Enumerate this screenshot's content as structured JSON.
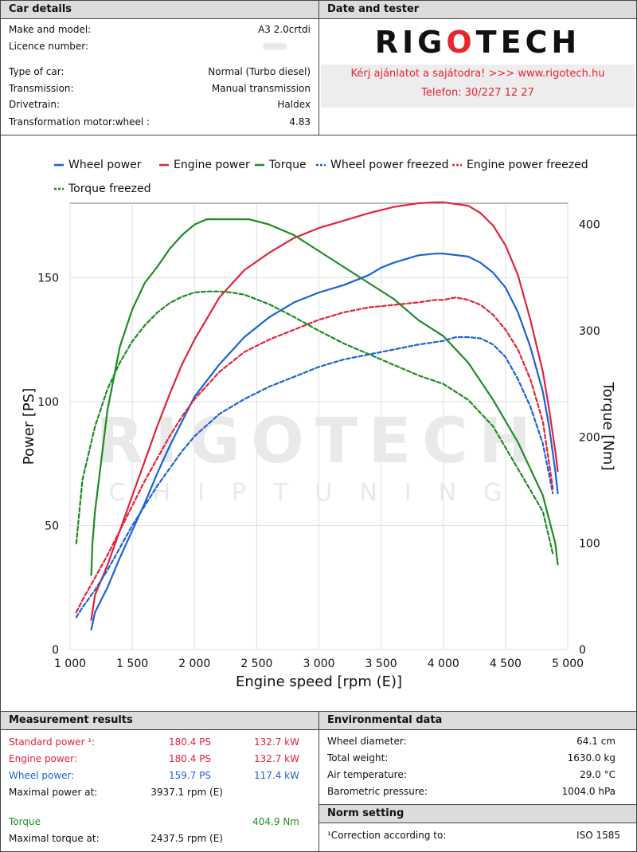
{
  "car_details": {
    "header": "Car details",
    "rows": [
      {
        "label": "Make and model:",
        "value": "A3 2.0crtdi"
      },
      {
        "label": "Licence number:",
        "value": ""
      },
      {
        "label": "Type of car:",
        "value": "Normal (Turbo diesel)"
      },
      {
        "label": "Transmission:",
        "value": "Manual transmission"
      },
      {
        "label": "Drivetrain:",
        "value": "Haldex"
      },
      {
        "label": "Transformation motor:wheel :",
        "value": "4.83"
      }
    ]
  },
  "date_tester": {
    "header": "Date and tester",
    "logo_left": "RIG",
    "logo_o": "O",
    "logo_right": "TECH",
    "promo_line1": "Kérj ajánlatot a sajátodra!  >>>  www.rigotech.hu",
    "promo_line2": "Telefon: 30/227 12 27"
  },
  "watermark": {
    "main": "RIGOTECH",
    "sub": "CHIPTUNING"
  },
  "colors": {
    "wheel": "#1a63d6",
    "engine": "#e3233b",
    "torque": "#1d8c22",
    "header_bg": "#dcdcdc"
  },
  "chart_data": {
    "type": "line",
    "xlabel": "Engine speed [rpm (E)]",
    "ylabel": "Power [PS]",
    "y2label": "Torque [Nm]",
    "xlim": [
      1000,
      5000
    ],
    "ylim": [
      0,
      180
    ],
    "y2lim": [
      0,
      420
    ],
    "xticks": [
      1000,
      1500,
      2000,
      2500,
      3000,
      3500,
      4000,
      4500,
      5000
    ],
    "xtick_labels": [
      "1 000",
      "1 500",
      "2 000",
      "2 500",
      "3 000",
      "3 500",
      "4 000",
      "4 500",
      "5 000"
    ],
    "yticks": [
      0,
      50,
      100,
      150
    ],
    "ytick_labels": [
      "0",
      "50",
      "100",
      "150"
    ],
    "y2ticks": [
      0,
      100,
      200,
      300,
      400
    ],
    "y2tick_labels": [
      "0",
      "100",
      "200",
      "300",
      "400"
    ],
    "grid": true,
    "legend_position": "top",
    "series": [
      {
        "name": "Wheel power",
        "axis": "left",
        "style": "solid",
        "color": "#1a63d6",
        "x": [
          1170,
          1200,
          1300,
          1400,
          1500,
          1600,
          1700,
          1800,
          1900,
          2000,
          2200,
          2400,
          2600,
          2800,
          3000,
          3200,
          3400,
          3500,
          3600,
          3800,
          3937,
          4000,
          4200,
          4300,
          4400,
          4500,
          4600,
          4700,
          4800,
          4850,
          4900,
          4920
        ],
        "y": [
          8,
          15,
          25,
          37,
          48,
          59,
          71,
          82,
          92,
          102,
          115,
          126,
          134,
          140,
          144,
          147,
          151,
          154,
          156,
          159,
          159.7,
          159.7,
          158.5,
          156,
          152,
          146,
          136,
          122,
          104,
          90,
          72,
          63
        ]
      },
      {
        "name": "Engine power",
        "axis": "left",
        "style": "solid",
        "color": "#e3233b",
        "x": [
          1170,
          1200,
          1300,
          1400,
          1500,
          1600,
          1700,
          1800,
          1900,
          2000,
          2200,
          2400,
          2600,
          2800,
          3000,
          3200,
          3400,
          3600,
          3800,
          3937,
          4000,
          4200,
          4300,
          4400,
          4500,
          4600,
          4700,
          4800,
          4850,
          4900,
          4920
        ],
        "y": [
          12,
          22,
          34,
          48,
          62,
          76,
          90,
          103,
          115,
          125,
          142,
          153,
          160,
          166,
          170,
          173,
          176,
          178.5,
          180,
          180.4,
          180.4,
          179,
          176,
          171,
          163,
          151,
          133,
          112,
          97,
          80,
          72
        ]
      },
      {
        "name": "Torque",
        "axis": "right",
        "style": "solid",
        "color": "#1d8c22",
        "x": [
          1170,
          1180,
          1200,
          1300,
          1400,
          1500,
          1600,
          1700,
          1800,
          1900,
          2000,
          2100,
          2200,
          2300,
          2437.5,
          2600,
          2800,
          3000,
          3200,
          3400,
          3600,
          3800,
          4000,
          4200,
          4400,
          4600,
          4800,
          4900,
          4920
        ],
        "y": [
          70,
          100,
          130,
          225,
          285,
          320,
          345,
          360,
          377,
          390,
          400,
          405,
          404.9,
          404.9,
          404.9,
          400,
          390,
          375,
          360,
          345,
          330,
          310,
          295,
          270,
          235,
          195,
          145,
          100,
          80
        ]
      },
      {
        "name": "Wheel power freezed",
        "axis": "left",
        "style": "dashed",
        "color": "#1a63d6",
        "x": [
          1050,
          1100,
          1200,
          1300,
          1400,
          1500,
          1600,
          1700,
          1800,
          1900,
          2000,
          2200,
          2400,
          2600,
          2800,
          3000,
          3200,
          3400,
          3600,
          3800,
          3937,
          4000,
          4100,
          4200,
          4300,
          4400,
          4500,
          4600,
          4700,
          4800,
          4880
        ],
        "y": [
          13,
          17,
          24,
          32,
          41,
          50,
          58,
          66,
          73,
          80,
          86,
          95,
          101,
          106,
          110,
          114,
          117,
          119,
          121,
          123,
          124,
          124.5,
          126,
          126,
          125.5,
          123,
          118,
          109,
          98,
          83,
          63
        ]
      },
      {
        "name": "Engine power freezed",
        "axis": "left",
        "style": "dashed",
        "color": "#e3233b",
        "x": [
          1050,
          1100,
          1200,
          1300,
          1400,
          1500,
          1600,
          1700,
          1800,
          1900,
          2000,
          2200,
          2400,
          2600,
          2800,
          3000,
          3200,
          3400,
          3600,
          3800,
          3937,
          4000,
          4100,
          4200,
          4300,
          4400,
          4500,
          4600,
          4700,
          4800,
          4880
        ],
        "y": [
          15,
          20,
          29,
          38,
          48,
          58,
          68,
          77,
          86,
          94,
          101,
          112,
          120,
          125,
          129,
          133,
          136,
          138,
          139,
          140,
          141,
          141,
          142,
          141,
          139,
          135,
          129,
          121,
          109,
          92,
          65
        ]
      },
      {
        "name": "Torque freezed",
        "axis": "right",
        "style": "dashed",
        "color": "#1d8c22",
        "x": [
          1050,
          1100,
          1200,
          1300,
          1400,
          1500,
          1600,
          1700,
          1800,
          1900,
          2000,
          2100,
          2200,
          2300,
          2400,
          2600,
          2800,
          3000,
          3200,
          3400,
          3600,
          3800,
          4000,
          4200,
          4400,
          4600,
          4800,
          4880
        ],
        "y": [
          100,
          160,
          210,
          245,
          270,
          290,
          305,
          317,
          326,
          332,
          336,
          337,
          337,
          336,
          334,
          325,
          313,
          300,
          288,
          278,
          268,
          258,
          250,
          235,
          210,
          170,
          130,
          90
        ]
      }
    ]
  },
  "measurement": {
    "header": "Measurement results",
    "standard_label": "Standard power ¹:",
    "standard_ps": "180.4 PS",
    "standard_kw": "132.7 kW",
    "engine_label": "Engine power:",
    "engine_ps": "180.4 PS",
    "engine_kw": "132.7 kW",
    "wheel_label": "Wheel power:",
    "wheel_ps": "159.7 PS",
    "wheel_kw": "117.4 kW",
    "maxpower_label": "Maximal power at:",
    "maxpower_val": "3937.1 rpm (E)",
    "torque_label": "Torque",
    "torque_val": "404.9 Nm",
    "maxtorque_label": "Maximal torque at:",
    "maxtorque_val": "2437.5 rpm (E)"
  },
  "environment": {
    "header": "Environmental data",
    "rows": [
      {
        "label": "Wheel diameter:",
        "value": "64.1 cm"
      },
      {
        "label": "Total weight:",
        "value": "1630.0 kg"
      },
      {
        "label": "Air temperature:",
        "value": "29.0 °C"
      },
      {
        "label": "Barometric pressure:",
        "value": "1004.0 hPa"
      }
    ]
  },
  "norm": {
    "header": "Norm setting",
    "label": "¹Correction according to:",
    "value": "ISO 1585"
  }
}
